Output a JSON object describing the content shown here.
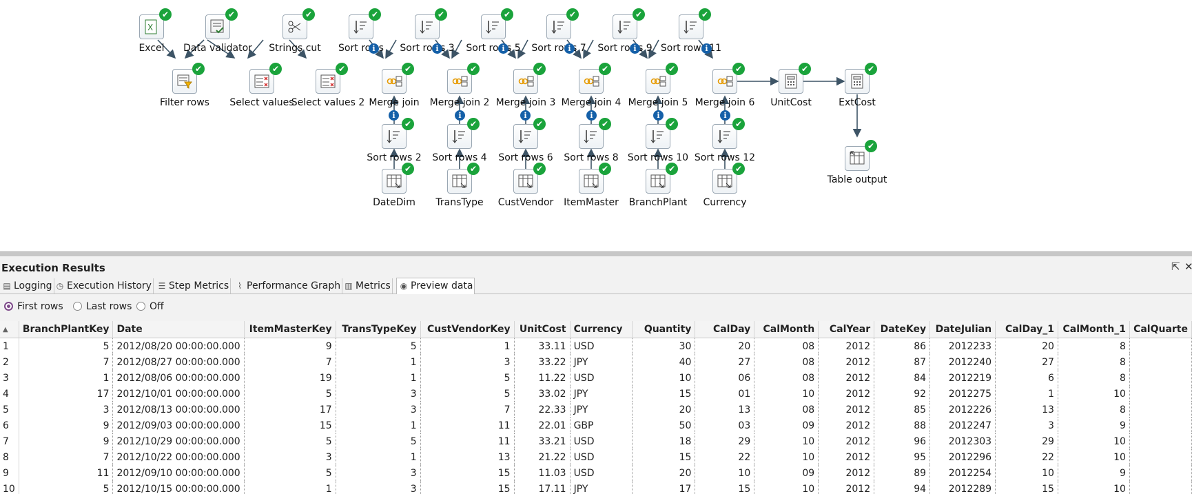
{
  "canvas": {
    "steps": [
      {
        "id": "excel",
        "label": "Excel",
        "kind": "excel"
      },
      {
        "id": "datavalidator",
        "label": "Data validator",
        "kind": "validator"
      },
      {
        "id": "stringscut",
        "label": "Strings cut",
        "kind": "scissors"
      },
      {
        "id": "sortrows",
        "label": "Sort rows",
        "kind": "sort"
      },
      {
        "id": "sortrows3",
        "label": "Sort rows 3",
        "kind": "sort"
      },
      {
        "id": "sortrows5",
        "label": "Sort rows 5",
        "kind": "sort"
      },
      {
        "id": "sortrows7",
        "label": "Sort rows 7",
        "kind": "sort"
      },
      {
        "id": "sortrows9",
        "label": "Sort rows 9",
        "kind": "sort"
      },
      {
        "id": "sortrows11",
        "label": "Sort rows 11",
        "kind": "sort"
      },
      {
        "id": "filterrows",
        "label": "Filter rows",
        "kind": "filter"
      },
      {
        "id": "selectvalues",
        "label": "Select values",
        "kind": "select"
      },
      {
        "id": "selectvalues2",
        "label": "Select values 2",
        "kind": "select"
      },
      {
        "id": "mergejoin",
        "label": "Merge join",
        "kind": "merge"
      },
      {
        "id": "mergejoin2",
        "label": "Merge join 2",
        "kind": "merge"
      },
      {
        "id": "mergejoin3",
        "label": "Merge join 3",
        "kind": "merge"
      },
      {
        "id": "mergejoin4",
        "label": "Merge join 4",
        "kind": "merge"
      },
      {
        "id": "mergejoin5",
        "label": "Merge join 5",
        "kind": "merge"
      },
      {
        "id": "mergejoin6",
        "label": "Merge join 6",
        "kind": "merge"
      },
      {
        "id": "unitcost",
        "label": "UnitCost",
        "kind": "calc"
      },
      {
        "id": "extcost",
        "label": "ExtCost",
        "kind": "calc"
      },
      {
        "id": "sortrows2",
        "label": "Sort rows 2",
        "kind": "sort"
      },
      {
        "id": "sortrows4",
        "label": "Sort rows 4",
        "kind": "sort"
      },
      {
        "id": "sortrows6",
        "label": "Sort rows 6",
        "kind": "sort"
      },
      {
        "id": "sortrows8",
        "label": "Sort rows 8",
        "kind": "sort"
      },
      {
        "id": "sortrows10",
        "label": "Sort rows 10",
        "kind": "sort"
      },
      {
        "id": "sortrows12",
        "label": "Sort rows 12",
        "kind": "sort"
      },
      {
        "id": "tableoutput",
        "label": "Table output",
        "kind": "tableout"
      },
      {
        "id": "datedim",
        "label": "DateDim",
        "kind": "tablein"
      },
      {
        "id": "transtype",
        "label": "TransType",
        "kind": "tablein"
      },
      {
        "id": "custvendor",
        "label": "CustVendor",
        "kind": "tablein"
      },
      {
        "id": "itemmaster",
        "label": "ItemMaster",
        "kind": "tablein"
      },
      {
        "id": "branchplant",
        "label": "BranchPlant",
        "kind": "tablein"
      },
      {
        "id": "currency",
        "label": "Currency",
        "kind": "tablein"
      }
    ]
  },
  "results": {
    "title": "Execution Results",
    "tabs": [
      {
        "label": "Logging",
        "icon": "log-icon"
      },
      {
        "label": "Execution History",
        "icon": "history-icon"
      },
      {
        "label": "Step Metrics",
        "icon": "metrics-list-icon"
      },
      {
        "label": "Performance Graph",
        "icon": "graph-icon"
      },
      {
        "label": "Metrics",
        "icon": "metrics-icon"
      },
      {
        "label": "Preview data",
        "icon": "eye-icon",
        "active": true
      }
    ],
    "radios": [
      {
        "label": "First rows",
        "selected": true
      },
      {
        "label": "Last rows",
        "selected": false
      },
      {
        "label": "Off",
        "selected": false
      }
    ],
    "columns": [
      "BranchPlantKey",
      "Date",
      "ItemMasterKey",
      "TransTypeKey",
      "CustVendorKey",
      "UnitCost",
      "Currency",
      "Quantity",
      "CalDay",
      "CalMonth",
      "CalYear",
      "DateKey",
      "DateJulian",
      "CalDay_1",
      "CalMonth_1",
      "CalQuarte"
    ],
    "rows": [
      [
        "1",
        "5",
        "2012/08/20 00:00:00.000",
        "9",
        "5",
        "1",
        "33.11",
        "USD",
        "30",
        "20",
        "08",
        "2012",
        "86",
        "2012233",
        "20",
        "8",
        ""
      ],
      [
        "2",
        "7",
        "2012/08/27 00:00:00.000",
        "7",
        "1",
        "3",
        "33.22",
        "JPY",
        "40",
        "27",
        "08",
        "2012",
        "87",
        "2012240",
        "27",
        "8",
        ""
      ],
      [
        "3",
        "1",
        "2012/08/06 00:00:00.000",
        "19",
        "1",
        "5",
        "11.22",
        "USD",
        "10",
        "06",
        "08",
        "2012",
        "84",
        "2012219",
        "6",
        "8",
        ""
      ],
      [
        "4",
        "17",
        "2012/10/01 00:00:00.000",
        "5",
        "3",
        "5",
        "33.02",
        "JPY",
        "15",
        "01",
        "10",
        "2012",
        "92",
        "2012275",
        "1",
        "10",
        ""
      ],
      [
        "5",
        "3",
        "2012/08/13 00:00:00.000",
        "17",
        "3",
        "7",
        "22.33",
        "JPY",
        "20",
        "13",
        "08",
        "2012",
        "85",
        "2012226",
        "13",
        "8",
        ""
      ],
      [
        "6",
        "9",
        "2012/09/03 00:00:00.000",
        "15",
        "1",
        "11",
        "22.01",
        "GBP",
        "50",
        "03",
        "09",
        "2012",
        "88",
        "2012247",
        "3",
        "9",
        ""
      ],
      [
        "7",
        "9",
        "2012/10/29 00:00:00.000",
        "5",
        "5",
        "11",
        "33.21",
        "USD",
        "18",
        "29",
        "10",
        "2012",
        "96",
        "2012303",
        "29",
        "10",
        ""
      ],
      [
        "8",
        "7",
        "2012/10/22 00:00:00.000",
        "3",
        "1",
        "13",
        "21.22",
        "USD",
        "15",
        "22",
        "10",
        "2012",
        "95",
        "2012296",
        "22",
        "10",
        ""
      ],
      [
        "9",
        "11",
        "2012/09/10 00:00:00.000",
        "5",
        "3",
        "15",
        "11.03",
        "USD",
        "20",
        "10",
        "09",
        "2012",
        "89",
        "2012254",
        "10",
        "9",
        ""
      ],
      [
        "10",
        "5",
        "2012/10/15 00:00:00.000",
        "1",
        "3",
        "15",
        "17.11",
        "JPY",
        "17",
        "15",
        "10",
        "2012",
        "94",
        "2012289",
        "15",
        "10",
        ""
      ]
    ]
  }
}
